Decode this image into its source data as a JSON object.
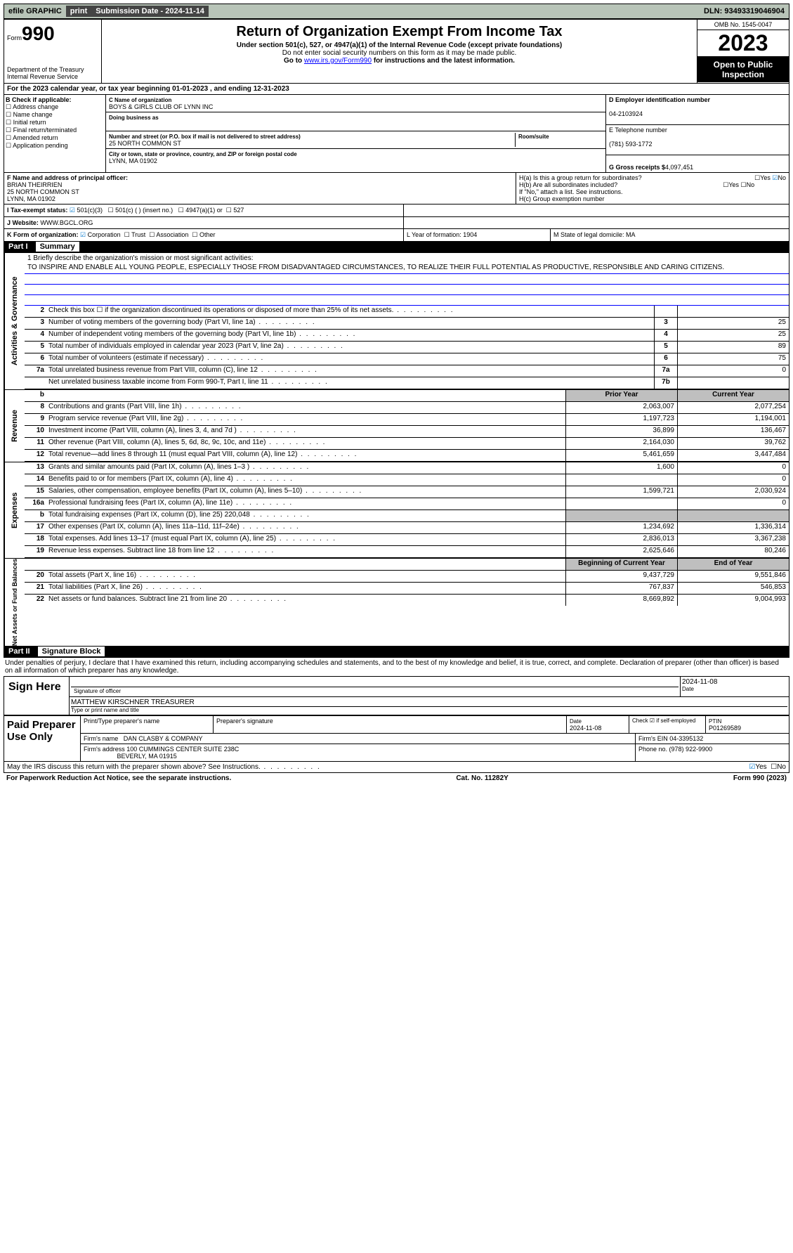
{
  "top": {
    "efile": "efile GRAPHIC",
    "print": "print",
    "sub_date_label": "Submission Date - 2024-11-14",
    "dln": "DLN: 93493319046904"
  },
  "header": {
    "form": "Form",
    "num": "990",
    "dept": "Department of the Treasury",
    "irs": "Internal Revenue Service",
    "title": "Return of Organization Exempt From Income Tax",
    "sub1": "Under section 501(c), 527, or 4947(a)(1) of the Internal Revenue Code (except private foundations)",
    "sub2": "Do not enter social security numbers on this form as it may be made public.",
    "sub3_pre": "Go to ",
    "sub3_link": "www.irs.gov/Form990",
    "sub3_post": " for instructions and the latest information.",
    "omb": "OMB No. 1545-0047",
    "year": "2023",
    "open": "Open to Public Inspection"
  },
  "rowA": "For the 2023 calendar year, or tax year beginning 01-01-2023    , and ending 12-31-2023",
  "colB": {
    "title": "B Check if applicable:",
    "items": [
      "Address change",
      "Name change",
      "Initial return",
      "Final return/terminated",
      "Amended return",
      "Application pending"
    ]
  },
  "colC": {
    "name_label": "C Name of organization",
    "name": "BOYS & GIRLS CLUB OF LYNN INC",
    "dba_label": "Doing business as",
    "street_label": "Number and street (or P.O. box if mail is not delivered to street address)",
    "street": "25 NORTH COMMON ST",
    "room_label": "Room/suite",
    "city_label": "City or town, state or province, country, and ZIP or foreign postal code",
    "city": "LYNN, MA  01902"
  },
  "colD": {
    "ein_label": "D Employer identification number",
    "ein": "04-2103924",
    "tel_label": "E Telephone number",
    "tel": "(781) 593-1772",
    "gross_label": "G Gross receipts $",
    "gross": "4,097,451"
  },
  "rowF": {
    "label": "F  Name and address of principal officer:",
    "name": "BRIAN THEIRRIEN",
    "street": "25 NORTH COMMON ST",
    "city": "LYNN, MA  01902"
  },
  "rowH": {
    "ha": "H(a)  Is this a group return for subordinates?",
    "hb": "H(b)  Are all subordinates included?",
    "hb_note": "If \"No,\" attach a list. See instructions.",
    "hc": "H(c)  Group exemption number ",
    "yes": "Yes",
    "no": "No"
  },
  "rowI": {
    "label": "I    Tax-exempt status:",
    "o1": "501(c)(3)",
    "o2": "501(c) (  ) (insert no.)",
    "o3": "4947(a)(1) or",
    "o4": "527"
  },
  "rowJ": {
    "label": "J    Website: ",
    "val": "WWW.BGCL.ORG"
  },
  "rowK": {
    "label": "K Form of organization:",
    "o1": "Corporation",
    "o2": "Trust",
    "o3": "Association",
    "o4": "Other",
    "l": "L Year of formation: 1904",
    "m": "M State of legal domicile: MA"
  },
  "partI": {
    "num": "Part I",
    "title": "Summary"
  },
  "mission": {
    "label": "1   Briefly describe the organization's mission or most significant activities:",
    "text": "TO INSPIRE AND ENABLE ALL YOUNG PEOPLE, ESPECIALLY THOSE FROM DISADVANTAGED CIRCUMSTANCES, TO REALIZE THEIR FULL POTENTIAL AS PRODUCTIVE, RESPONSIBLE AND CARING CITIZENS."
  },
  "gov_rows": [
    {
      "n": "2",
      "d": "Check this box  ☐  if the organization discontinued its operations or disposed of more than 25% of its net assets.",
      "b": "",
      "v": ""
    },
    {
      "n": "3",
      "d": "Number of voting members of the governing body (Part VI, line 1a)",
      "b": "3",
      "v": "25"
    },
    {
      "n": "4",
      "d": "Number of independent voting members of the governing body (Part VI, line 1b)",
      "b": "4",
      "v": "25"
    },
    {
      "n": "5",
      "d": "Total number of individuals employed in calendar year 2023 (Part V, line 2a)",
      "b": "5",
      "v": "89"
    },
    {
      "n": "6",
      "d": "Total number of volunteers (estimate if necessary)",
      "b": "6",
      "v": "75"
    },
    {
      "n": "7a",
      "d": "Total unrelated business revenue from Part VIII, column (C), line 12",
      "b": "7a",
      "v": "0"
    },
    {
      "n": "",
      "d": "Net unrelated business taxable income from Form 990-T, Part I, line 11",
      "b": "7b",
      "v": ""
    }
  ],
  "rev_hdr": {
    "py": "Prior Year",
    "cy": "Current Year"
  },
  "rev_rows": [
    {
      "n": "8",
      "d": "Contributions and grants (Part VIII, line 1h)",
      "v1": "2,063,007",
      "v2": "2,077,254"
    },
    {
      "n": "9",
      "d": "Program service revenue (Part VIII, line 2g)",
      "v1": "1,197,723",
      "v2": "1,194,001"
    },
    {
      "n": "10",
      "d": "Investment income (Part VIII, column (A), lines 3, 4, and 7d )",
      "v1": "36,899",
      "v2": "136,467"
    },
    {
      "n": "11",
      "d": "Other revenue (Part VIII, column (A), lines 5, 6d, 8c, 9c, 10c, and 11e)",
      "v1": "2,164,030",
      "v2": "39,762"
    },
    {
      "n": "12",
      "d": "Total revenue—add lines 8 through 11 (must equal Part VIII, column (A), line 12)",
      "v1": "5,461,659",
      "v2": "3,447,484"
    }
  ],
  "exp_rows": [
    {
      "n": "13",
      "d": "Grants and similar amounts paid (Part IX, column (A), lines 1–3 )",
      "v1": "1,600",
      "v2": "0"
    },
    {
      "n": "14",
      "d": "Benefits paid to or for members (Part IX, column (A), line 4)",
      "v1": "",
      "v2": "0"
    },
    {
      "n": "15",
      "d": "Salaries, other compensation, employee benefits (Part IX, column (A), lines 5–10)",
      "v1": "1,599,721",
      "v2": "2,030,924"
    },
    {
      "n": "16a",
      "d": "Professional fundraising fees (Part IX, column (A), line 11e)",
      "v1": "",
      "v2": "0"
    },
    {
      "n": "b",
      "d": "Total fundraising expenses (Part IX, column (D), line 25) 220,048",
      "v1": "shaded",
      "v2": "shaded"
    },
    {
      "n": "17",
      "d": "Other expenses (Part IX, column (A), lines 11a–11d, 11f–24e)",
      "v1": "1,234,692",
      "v2": "1,336,314"
    },
    {
      "n": "18",
      "d": "Total expenses. Add lines 13–17 (must equal Part IX, column (A), line 25)",
      "v1": "2,836,013",
      "v2": "3,367,238"
    },
    {
      "n": "19",
      "d": "Revenue less expenses. Subtract line 18 from line 12",
      "v1": "2,625,646",
      "v2": "80,246"
    }
  ],
  "na_hdr": {
    "py": "Beginning of Current Year",
    "cy": "End of Year"
  },
  "na_rows": [
    {
      "n": "20",
      "d": "Total assets (Part X, line 16)",
      "v1": "9,437,729",
      "v2": "9,551,846"
    },
    {
      "n": "21",
      "d": "Total liabilities (Part X, line 26)",
      "v1": "767,837",
      "v2": "546,853"
    },
    {
      "n": "22",
      "d": "Net assets or fund balances. Subtract line 21 from line 20",
      "v1": "8,669,892",
      "v2": "9,004,993"
    }
  ],
  "side_labels": {
    "gov": "Activities & Governance",
    "rev": "Revenue",
    "exp": "Expenses",
    "na": "Net Assets or Fund Balances"
  },
  "partII": {
    "num": "Part II",
    "title": "Signature Block"
  },
  "perjury": "Under penalties of perjury, I declare that I have examined this return, including accompanying schedules and statements, and to the best of my knowledge and belief, it is true, correct, and complete. Declaration of preparer (other than officer) is based on all information of which preparer has any knowledge.",
  "sign": {
    "here": "Sign Here",
    "sig_label": "Signature of officer",
    "date": "2024-11-08",
    "name": "MATTHEW KIRSCHNER  TREASURER",
    "name_label": "Type or print name and title"
  },
  "prep": {
    "title": "Paid Preparer Use Only",
    "h1": "Print/Type preparer's name",
    "h2": "Preparer's signature",
    "h3": "Date",
    "h3v": "2024-11-08",
    "h4": "Check ☑ if self-employed",
    "h5": "PTIN",
    "h5v": "P01269589",
    "firm_l": "Firm's name  ",
    "firm": "DAN CLASBY & COMPANY",
    "ein_l": "Firm's EIN ",
    "ein": "04-3395132",
    "addr_l": "Firm's address ",
    "addr1": "100 CUMMINGS CENTER SUITE 238C",
    "addr2": "BEVERLY, MA  01915",
    "phone_l": "Phone no. ",
    "phone": "(978) 922-9900"
  },
  "discuss": "May the IRS discuss this return with the preparer shown above? See Instructions.",
  "footer": {
    "l": "For Paperwork Reduction Act Notice, see the separate instructions.",
    "c": "Cat. No. 11282Y",
    "r": "Form 990 (2023)"
  }
}
